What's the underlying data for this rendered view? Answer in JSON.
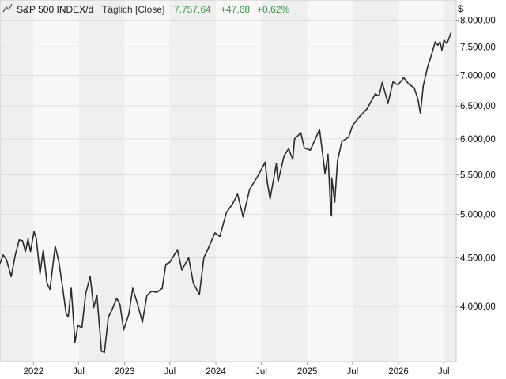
{
  "header": {
    "icon": "line-chart-icon",
    "title": "S&P 500 INDEX/d",
    "interval": "Täglich [Close]",
    "last": "7.757,64",
    "change": "+47,68",
    "change_pct": "+0,62%",
    "currency_symbol": "$"
  },
  "colors": {
    "line": "#2b2b2b",
    "positive": "#2e9e3f",
    "band_light": "#f7f7f7",
    "band_dark": "#efefef",
    "gridline": "#dddddd",
    "axis_bg": "#ffffff"
  },
  "chart_data": {
    "type": "line",
    "title": "S&P 500 INDEX/d",
    "xlabel": "",
    "ylabel": "",
    "y_scale": "log",
    "ylim": [
      3500,
      8400
    ],
    "xlim": [
      "2021-08-20",
      "2026-08-20"
    ],
    "grid": true,
    "y_ticks": [
      4000,
      4500,
      5000,
      5500,
      6000,
      6500,
      7000,
      7500,
      8000
    ],
    "y_tick_labels": [
      "4.000,00",
      "4.500,00",
      "5.000,00",
      "5.500,00",
      "6.000,00",
      "6.500,00",
      "7.000,00",
      "7.500,00",
      "8.000,00"
    ],
    "x_ticks": [
      "2022-01-01",
      "2022-07-01",
      "2023-01-01",
      "2023-07-01",
      "2024-01-01",
      "2024-07-01",
      "2025-01-01",
      "2025-07-01",
      "2026-01-01",
      "2026-07-01"
    ],
    "x_tick_labels": [
      "2022",
      "Jul",
      "2023",
      "Jul",
      "2024",
      "Jul",
      "2025",
      "Jul",
      "2026",
      "Jul"
    ],
    "series": [
      {
        "values": [
          [
            "2021-08-20",
            4440
          ],
          [
            "2021-09-02",
            4530
          ],
          [
            "2021-09-15",
            4480
          ],
          [
            "2021-10-04",
            4300
          ],
          [
            "2021-10-20",
            4530
          ],
          [
            "2021-11-05",
            4700
          ],
          [
            "2021-11-18",
            4690
          ],
          [
            "2021-11-30",
            4570
          ],
          [
            "2021-12-10",
            4710
          ],
          [
            "2021-12-20",
            4570
          ],
          [
            "2022-01-03",
            4795
          ],
          [
            "2022-01-12",
            4720
          ],
          [
            "2022-01-27",
            4330
          ],
          [
            "2022-02-09",
            4590
          ],
          [
            "2022-02-24",
            4230
          ],
          [
            "2022-03-08",
            4170
          ],
          [
            "2022-03-29",
            4630
          ],
          [
            "2022-04-13",
            4450
          ],
          [
            "2022-04-28",
            4180
          ],
          [
            "2022-05-12",
            3930
          ],
          [
            "2022-05-20",
            3900
          ],
          [
            "2022-06-01",
            4180
          ],
          [
            "2022-06-16",
            3670
          ],
          [
            "2022-06-28",
            3820
          ],
          [
            "2022-07-14",
            3800
          ],
          [
            "2022-07-29",
            4130
          ],
          [
            "2022-08-16",
            4300
          ],
          [
            "2022-08-30",
            3990
          ],
          [
            "2022-09-12",
            4110
          ],
          [
            "2022-09-30",
            3590
          ],
          [
            "2022-10-12",
            3580
          ],
          [
            "2022-10-28",
            3900
          ],
          [
            "2022-11-10",
            3960
          ],
          [
            "2022-11-30",
            4080
          ],
          [
            "2022-12-13",
            4020
          ],
          [
            "2022-12-28",
            3780
          ],
          [
            "2023-01-18",
            3930
          ],
          [
            "2023-02-02",
            4180
          ],
          [
            "2023-02-23",
            4010
          ],
          [
            "2023-03-13",
            3850
          ],
          [
            "2023-03-31",
            4110
          ],
          [
            "2023-04-18",
            4150
          ],
          [
            "2023-05-10",
            4140
          ],
          [
            "2023-05-31",
            4180
          ],
          [
            "2023-06-15",
            4430
          ],
          [
            "2023-06-30",
            4450
          ],
          [
            "2023-07-31",
            4590
          ],
          [
            "2023-08-18",
            4370
          ],
          [
            "2023-09-14",
            4500
          ],
          [
            "2023-10-03",
            4230
          ],
          [
            "2023-10-27",
            4120
          ],
          [
            "2023-11-14",
            4500
          ],
          [
            "2023-12-01",
            4600
          ],
          [
            "2023-12-28",
            4780
          ],
          [
            "2024-01-17",
            4740
          ],
          [
            "2024-02-12",
            5020
          ],
          [
            "2024-03-08",
            5130
          ],
          [
            "2024-03-28",
            5250
          ],
          [
            "2024-04-19",
            4970
          ],
          [
            "2024-05-15",
            5310
          ],
          [
            "2024-06-18",
            5490
          ],
          [
            "2024-07-16",
            5670
          ],
          [
            "2024-07-25",
            5400
          ],
          [
            "2024-08-05",
            5190
          ],
          [
            "2024-08-30",
            5650
          ],
          [
            "2024-09-06",
            5410
          ],
          [
            "2024-09-30",
            5760
          ],
          [
            "2024-10-18",
            5860
          ],
          [
            "2024-11-04",
            5710
          ],
          [
            "2024-11-11",
            6000
          ],
          [
            "2024-12-06",
            6090
          ],
          [
            "2024-12-20",
            5870
          ],
          [
            "2025-01-13",
            5840
          ],
          [
            "2025-02-19",
            6140
          ],
          [
            "2025-03-13",
            5520
          ],
          [
            "2025-03-25",
            5780
          ],
          [
            "2025-04-04",
            5070
          ],
          [
            "2025-04-08",
            4980
          ],
          [
            "2025-04-09",
            5460
          ],
          [
            "2025-04-21",
            5150
          ],
          [
            "2025-05-02",
            5690
          ],
          [
            "2025-05-19",
            5960
          ],
          [
            "2025-06-16",
            6030
          ],
          [
            "2025-07-01",
            6200
          ],
          [
            "2025-07-31",
            6340
          ],
          [
            "2025-08-29",
            6460
          ],
          [
            "2025-09-30",
            6690
          ],
          [
            "2025-10-15",
            6660
          ],
          [
            "2025-10-28",
            6880
          ],
          [
            "2025-11-20",
            6540
          ],
          [
            "2025-12-10",
            6890
          ],
          [
            "2025-12-30",
            6840
          ],
          [
            "2026-01-22",
            6960
          ],
          [
            "2026-02-12",
            6850
          ],
          [
            "2026-03-05",
            6790
          ],
          [
            "2026-03-20",
            6600
          ],
          [
            "2026-03-30",
            6380
          ],
          [
            "2026-04-10",
            6820
          ],
          [
            "2026-04-28",
            7150
          ],
          [
            "2026-05-12",
            7340
          ],
          [
            "2026-05-28",
            7590
          ],
          [
            "2026-06-08",
            7530
          ],
          [
            "2026-06-16",
            7590
          ],
          [
            "2026-06-24",
            7440
          ],
          [
            "2026-07-02",
            7620
          ],
          [
            "2026-07-14",
            7560
          ],
          [
            "2026-07-22",
            7650
          ],
          [
            "2026-07-30",
            7757.64
          ]
        ]
      }
    ]
  }
}
